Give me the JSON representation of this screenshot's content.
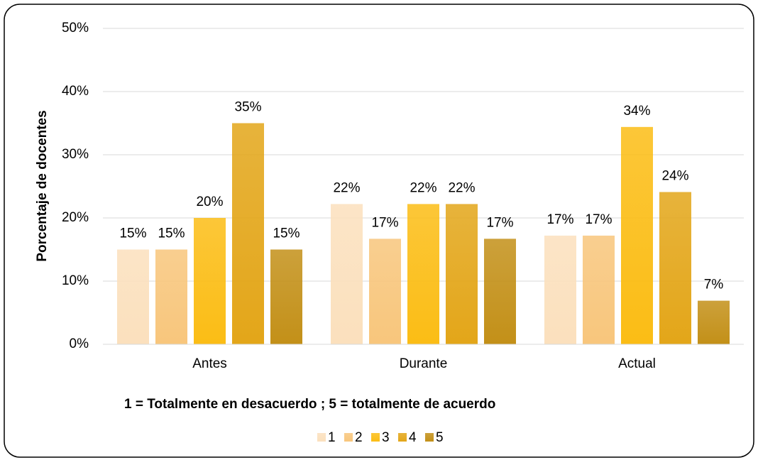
{
  "chart_data": {
    "type": "bar",
    "y_label": "Porcentaje de docentes",
    "note": "1 = Totalmente en desacuerdo ; 5 = totalmente de acuerdo",
    "categories": [
      "Antes",
      "Durante",
      "Actual"
    ],
    "series": [
      {
        "name": "1",
        "color": "#fbe0bd",
        "values": [
          15,
          22.2,
          17.2
        ],
        "value_labels": [
          "15%",
          "22%",
          "17%"
        ]
      },
      {
        "name": "2",
        "color": "#f8c67c",
        "values": [
          15,
          16.7,
          17.2
        ],
        "value_labels": [
          "15%",
          "17%",
          "17%"
        ]
      },
      {
        "name": "3",
        "color": "#fbbd15",
        "values": [
          20,
          22.2,
          34.4
        ],
        "value_labels": [
          "20%",
          "22%",
          "34%"
        ]
      },
      {
        "name": "4",
        "color": "#e3a619",
        "values": [
          35,
          22.2,
          24.1
        ],
        "value_labels": [
          "35%",
          "22%",
          "24%"
        ]
      },
      {
        "name": "5",
        "color": "#c39018",
        "values": [
          15,
          16.7,
          6.9
        ],
        "value_labels": [
          "15%",
          "17%",
          "7%"
        ]
      }
    ],
    "ylim": [
      0,
      50
    ],
    "yticks": [
      {
        "value": 0,
        "label": "0%"
      },
      {
        "value": 10,
        "label": "10%"
      },
      {
        "value": 20,
        "label": "20%"
      },
      {
        "value": 30,
        "label": "30%"
      },
      {
        "value": 40,
        "label": "40%"
      },
      {
        "value": 50,
        "label": "50%"
      }
    ],
    "grid": true
  }
}
